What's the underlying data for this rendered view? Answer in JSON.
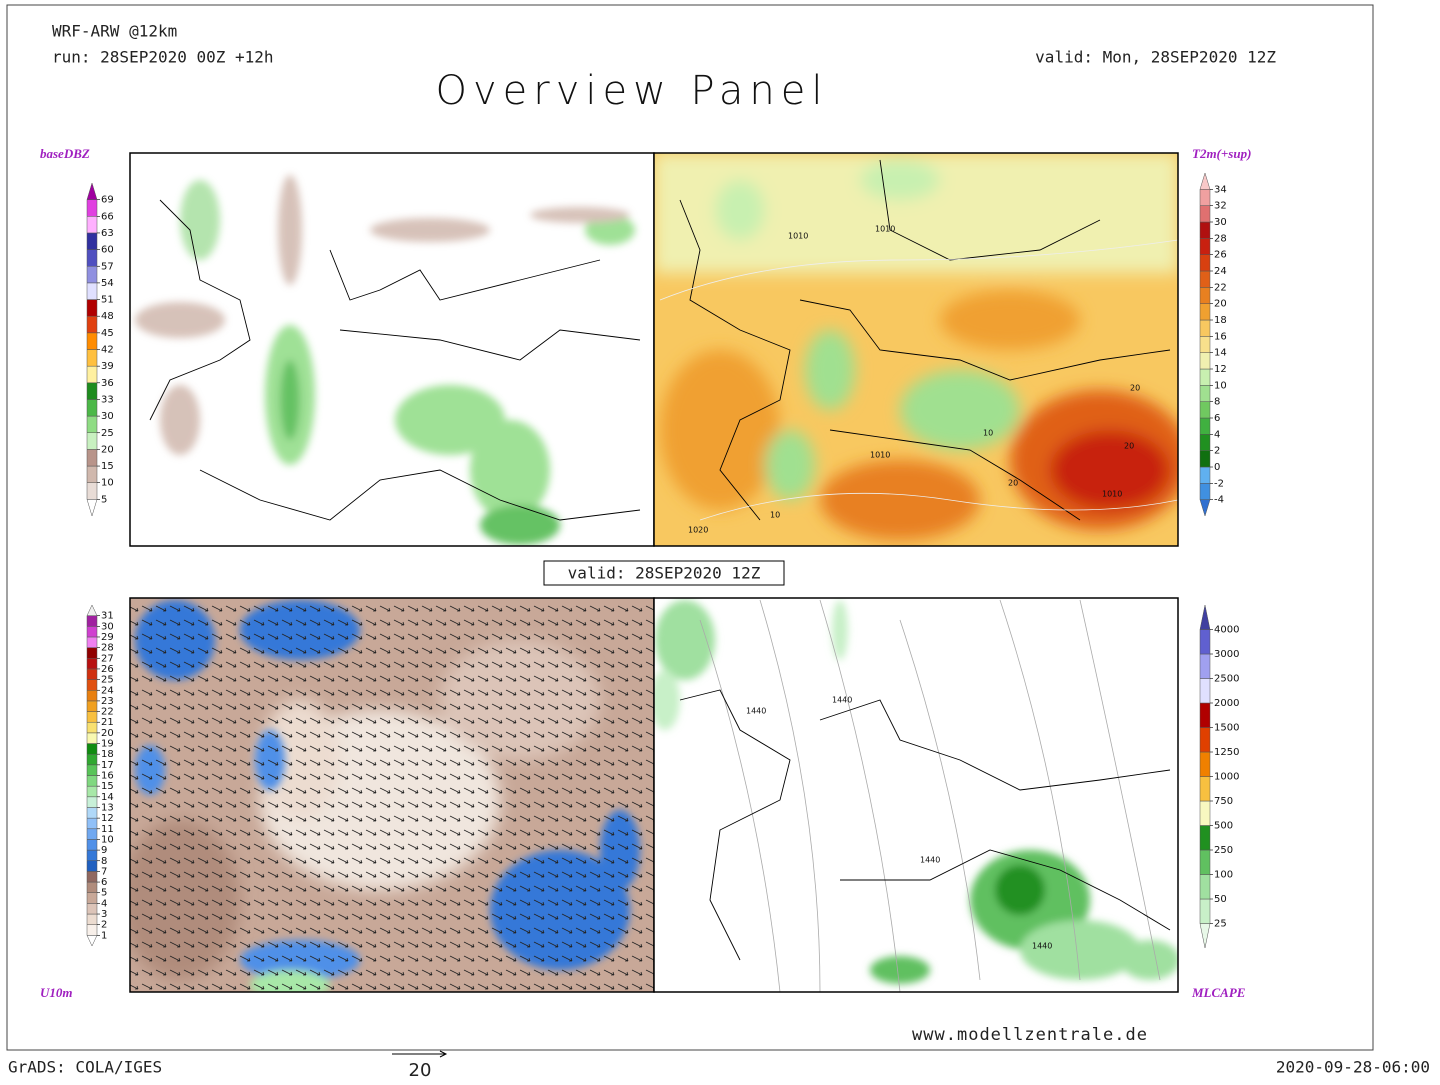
{
  "header": {
    "model": "WRF-ARW @12km",
    "run": "run: 28SEP2020 00Z +12h",
    "valid": "valid: Mon, 28SEP2020 12Z",
    "title": "Overview Panel"
  },
  "center_valid": "valid: 28SEP2020 12Z",
  "panels": [
    {
      "label": "baseDBZ",
      "colorbar": {
        "labels": [
          5,
          10,
          15,
          20,
          25,
          30,
          33,
          36,
          39,
          42,
          45,
          48,
          51,
          54,
          57,
          60,
          63,
          66,
          69
        ],
        "colors": [
          "#ffffff",
          "#e8dcd6",
          "#d0b8ad",
          "#b8948a",
          "#c8f0c0",
          "#8fdc84",
          "#4cb848",
          "#1e8c1e",
          "#fff0a0",
          "#ffc040",
          "#ff8c00",
          "#e04010",
          "#b00000",
          "#e0e0ff",
          "#9090e0",
          "#5050c0",
          "#3030a0",
          "#ffb0ff",
          "#e040e0",
          "#a000a0"
        ]
      },
      "map_labels": []
    },
    {
      "label": "T2m(+sup)",
      "colorbar": {
        "labels": [
          "-4",
          "-2",
          0,
          2,
          4,
          6,
          8,
          10,
          12,
          14,
          16,
          18,
          20,
          22,
          24,
          26,
          28,
          30,
          32,
          34
        ],
        "colors": [
          "#3070d0",
          "#4090e0",
          "#60b0f0",
          "#107010",
          "#209020",
          "#40b040",
          "#70c860",
          "#a0e090",
          "#c8f0b0",
          "#f0f0b0",
          "#f8e08c",
          "#f8c860",
          "#f0a030",
          "#e88020",
          "#e06018",
          "#d84010",
          "#c82010",
          "#b01010",
          "#e07070",
          "#f0a0a0",
          "#f8c8c8"
        ]
      },
      "map_labels": [
        "1010",
        "1010",
        "1010",
        "1010",
        "1020",
        "20",
        "20",
        "20",
        "10",
        "10"
      ]
    },
    {
      "label": "U10m",
      "colorbar": {
        "labels": [
          1,
          2,
          3,
          4,
          5,
          6,
          7,
          8,
          9,
          10,
          11,
          12,
          13,
          14,
          15,
          16,
          17,
          18,
          19,
          20,
          21,
          22,
          23,
          24,
          25,
          26,
          27,
          28,
          29,
          30,
          31
        ],
        "colors": [
          "#ffffff",
          "#f8f0ea",
          "#ecdcd0",
          "#dcc4b8",
          "#c8a898",
          "#b08c7c",
          "#906860",
          "#2060c0",
          "#3478d8",
          "#5090e8",
          "#70a8f0",
          "#90c0f8",
          "#b0d8f8",
          "#c8f0d8",
          "#a8e8a8",
          "#80d880",
          "#58c458",
          "#30a830",
          "#108c10",
          "#f8f8b0",
          "#f8e070",
          "#f8c040",
          "#f0a020",
          "#e88010",
          "#e05010",
          "#d03010",
          "#b81010",
          "#900000",
          "#f080f0",
          "#d040d0",
          "#a020a0",
          "#f0f0f0"
        ]
      },
      "map_labels": []
    },
    {
      "label": "MLCAPE",
      "colorbar": {
        "labels": [
          25,
          50,
          100,
          250,
          500,
          750,
          1000,
          1250,
          1500,
          2000,
          2500,
          3000,
          4000
        ],
        "colors": [
          "#e8f8e8",
          "#c8f0c8",
          "#a0e0a0",
          "#60c060",
          "#209020",
          "#f8f8c0",
          "#f8c040",
          "#f08000",
          "#e04000",
          "#b00000",
          "#e0e0ff",
          "#a0a0f0",
          "#6060d0",
          "#4040a0"
        ]
      },
      "map_labels": [
        "1440",
        "1440",
        "1440",
        "1440"
      ]
    }
  ],
  "footer": {
    "website": "www.modellzentrale.de",
    "software": "GrADS: COLA/IGES",
    "vector_scale": "20",
    "timestamp": "2020-09-28-06:00"
  }
}
